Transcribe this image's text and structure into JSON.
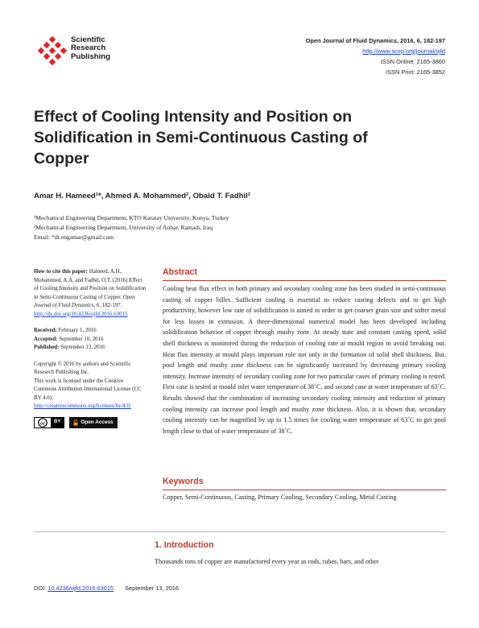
{
  "publisher": {
    "name_lines": [
      "Scientific",
      "Research",
      "Publishing"
    ],
    "logo_icon": "scientific-research-publishing-logo",
    "brand_color": "#d7262e"
  },
  "journal": {
    "citation": "Open Journal of Fluid Dynamics, 2016, 6, 182-197",
    "url": "http://www.scirp.org/journal/ojfd",
    "issn_online": "ISSN Online: 2165-3860",
    "issn_print": "ISSN Print: 2165-3852"
  },
  "article": {
    "title": "Effect of Cooling Intensity and Position on Solidification in Semi-Continuous Casting of Copper",
    "authors": "Amar H. Hameed¹*, Ahmed A. Mohammed², Obaid T. Fadhil²",
    "affiliations": [
      "¹Mechanical Engineering Department, KTO Karatay University, Konya, Turkey",
      "²Mechanical Engineering Department, University of Anbar, Ramadi, Iraq"
    ],
    "email": "Email: *dr.engamar@gmail.com"
  },
  "sidebar": {
    "cite_label": "How to cite this paper:",
    "cite_text": "Hameed, A.H., Mohammed, A.A. and Fadhil, O.T. (2016) Effect of Cooling Intensity and Position on Solidification in Semi-Continuous Casting of Copper.",
    "cite_journal": "Open Journal of Fluid Dynamics",
    "cite_vol": ", 6, 182-197.",
    "cite_doi": "http://dx.doi.org/10.4236/ojfd.2016.63015",
    "received_label": "Received:",
    "received": "February 1, 2016",
    "accepted_label": "Accepted:",
    "accepted": "September 10, 2016",
    "published_label": "Published:",
    "published": "September 13, 2016",
    "copyright1": "Copyright © 2016 by authors and Scientific Research Publishing Inc.",
    "copyright2": "This work is licensed under the Creative Commons Attribution International License (CC BY 4.0).",
    "license_url": "http://creativecommons.org/licenses/by/4.0/",
    "cc_label": "BY",
    "oa_label": "Open Access"
  },
  "abstract": {
    "heading": "Abstract",
    "text": "Cooling heat flux effect in both primary and secondary cooling zone has been studied in semi-continuous casting of copper billet. Sufficient cooling is essential to reduce casting defects and to get high productivity, however low rate of solidification is aimed in order to get coarser grain size and softer metal for less losses in extrusion. A three-dimensional numerical model has been developed including solidification behavior of copper through mushy zone. At steady state and constant casting speed, solid shell thickness is monitored during the reduction of cooling rate at mould region to avoid breaking out. Heat flux intensity at mould plays important role not only in the formation of solid shell thickness. But, pool length and mushy zone thickness can be significantly increased by decreasing primary cooling intensity. Increase intensity of secondary cooling zone for two particular cases of primary cooling is tested. First case is tested at mould inlet water temperature of 38˚C, and second case at water temperature of 63˚C. Results showed that the combination of increasing secondary cooling intensity and reduction of primary cooling intensity can increase pool length and mushy zone thickness. Also, it is shown that, secondary cooling intensity can be magnified by up to 1.5 times for cooling water temperature of 63˚C to get pool length close to that of water temperature of 38˚C."
  },
  "keywords": {
    "heading": "Keywords",
    "text": "Copper, Semi-Continuous, Casting, Primary Cooling, Secondary Cooling, Metal Casting"
  },
  "introduction": {
    "heading": "1. Introduction",
    "text": "Thousands tons of copper are manufactured every year as rods, tubes, bars, and other"
  },
  "footer": {
    "doi_label": "DOI: ",
    "doi": "10.4236/ojfd.2016.63015",
    "date": "September 13, 2016"
  }
}
